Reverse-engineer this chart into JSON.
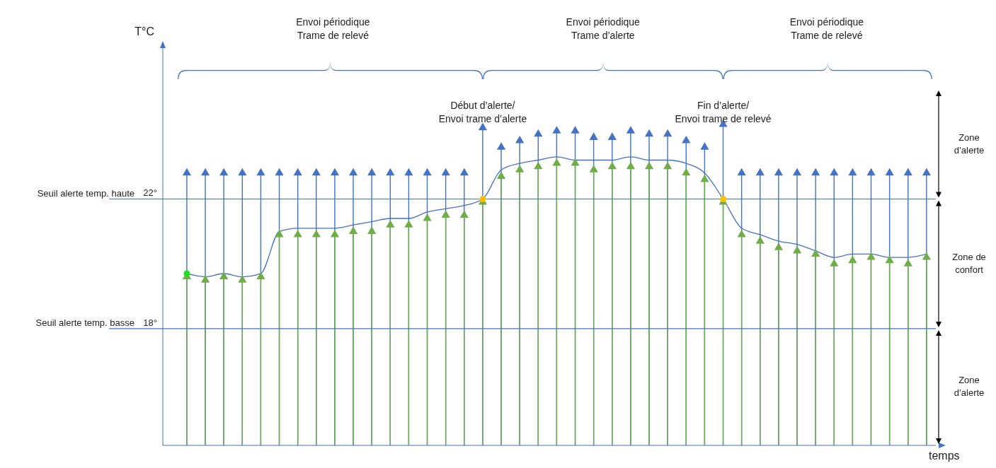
{
  "chart_data": {
    "type": "line",
    "xlabel": "temps",
    "ylabel": "T°C",
    "categories": [
      null,
      null,
      null,
      null,
      null,
      null,
      null,
      null,
      null,
      null,
      null,
      null,
      null,
      null,
      null,
      null,
      null,
      null,
      null,
      null,
      null,
      null,
      null,
      null,
      null,
      null,
      null,
      null,
      null,
      null,
      null,
      null,
      null,
      null,
      null,
      null,
      null,
      null,
      null,
      null,
      null
    ],
    "ylim": [
      14.4,
      26.7
    ],
    "yticks": [
      {
        "value": 18,
        "label": "18°"
      },
      {
        "value": 22,
        "label": "22°"
      }
    ],
    "tick_labels": "y",
    "legend": false,
    "series": [
      {
        "type": "lollipop",
        "color": "#4472c4",
        "marker": "triangle",
        "values": [
          22.8,
          22.8,
          22.8,
          22.8,
          22.8,
          22.8,
          22.8,
          22.8,
          22.8,
          22.8,
          22.8,
          22.8,
          22.8,
          22.8,
          22.8,
          22.8,
          24.2,
          23.6,
          23.8,
          24.0,
          24.1,
          24.1,
          23.9,
          23.9,
          24.1,
          24.0,
          24.0,
          23.8,
          23.6,
          24.3,
          22.8,
          22.8,
          22.8,
          22.8,
          22.8,
          22.8,
          22.8,
          22.8,
          22.8,
          22.8,
          22.8
        ]
      },
      {
        "type": "lollipop",
        "color": "#70ad47",
        "marker": "triangle",
        "values": [
          19.6,
          19.5,
          19.6,
          19.5,
          19.6,
          20.9,
          20.9,
          20.9,
          20.9,
          21.0,
          21.0,
          21.2,
          21.2,
          21.4,
          21.5,
          21.5,
          21.9,
          22.7,
          22.9,
          23.0,
          23.1,
          23.1,
          22.9,
          23.0,
          23.0,
          23.0,
          23.0,
          22.8,
          22.6,
          21.9,
          20.9,
          20.7,
          20.5,
          20.4,
          20.3,
          20.0,
          20.1,
          20.2,
          20.1,
          20.0,
          20.2
        ]
      },
      {
        "type": "line",
        "color": "#4472c4",
        "marker": "none",
        "values": [
          19.7,
          19.6,
          19.7,
          19.6,
          19.7,
          21.0,
          21.1,
          21.1,
          21.1,
          21.2,
          21.3,
          21.4,
          21.4,
          21.6,
          21.7,
          21.8,
          22.0,
          22.9,
          23.1,
          23.2,
          23.3,
          23.2,
          23.2,
          23.2,
          23.3,
          23.2,
          23.2,
          23.1,
          22.8,
          22.0,
          21.1,
          20.9,
          20.7,
          20.6,
          20.4,
          20.2,
          20.3,
          20.3,
          20.2,
          20.2,
          20.3
        ]
      },
      {
        "type": "scatter",
        "color": "#ffc000",
        "marker": "circle",
        "values": [
          null,
          null,
          null,
          null,
          null,
          null,
          null,
          null,
          null,
          null,
          null,
          null,
          null,
          null,
          null,
          null,
          22.0,
          null,
          null,
          null,
          null,
          null,
          null,
          null,
          null,
          null,
          null,
          null,
          null,
          22.0,
          null,
          null,
          null,
          null,
          null,
          null,
          null,
          null,
          null,
          null,
          null
        ]
      },
      {
        "type": "scatter",
        "color": "#22dd22",
        "marker": "circle",
        "values": [
          19.7,
          null,
          null,
          null,
          null,
          null,
          null,
          null,
          null,
          null,
          null,
          null,
          null,
          null,
          null,
          null,
          null,
          null,
          null,
          null,
          null,
          null,
          null,
          null,
          null,
          null,
          null,
          null,
          null,
          null,
          null,
          null,
          null,
          null,
          null,
          null,
          null,
          null,
          null,
          null,
          null
        ]
      }
    ],
    "ref_lines": [
      {
        "axis": "y",
        "value": 22,
        "label": "Seuil alerte temp. haute"
      },
      {
        "axis": "y",
        "value": 18,
        "label": "Seuil alerte temp. basse"
      }
    ],
    "annotations": [
      "Envoi périodique\nTrame de relevé",
      "Envoi périodique\nTrame d’alerte",
      "Envoi périodique\nTrame de relevé",
      "Début d’alerte/\nEnvoi trame d’alerte",
      "Fin d’alerte/\nEnvoi trame de relevé",
      "Zone d’alerte",
      "Zone de confort",
      "Zone d’alerte"
    ]
  }
}
